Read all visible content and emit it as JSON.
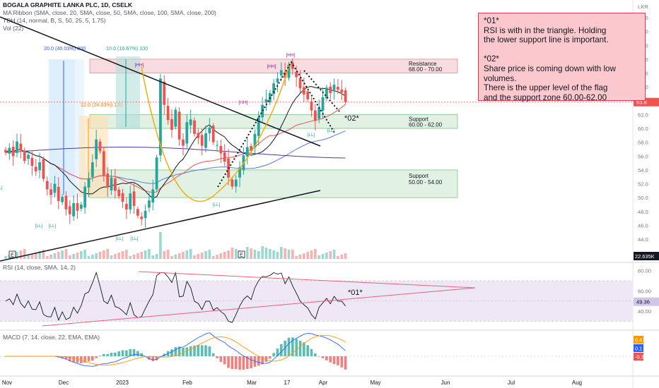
{
  "header": {
    "symbol_line": "BOGALA GRAPHITE LANKA PLC, 1D, CSELK",
    "ma_line": "MA Ribbon (SMA, close, 20, SMA, close, 50, SMA, close, 100, SMA, close, 200)",
    "tdh_line": "TDH (14, normal, B, S, 50, 25, 5, 1.75)",
    "vol_line": "Vol (22)"
  },
  "note": {
    "lines": [
      "*01*",
      "RSI is with in the triangle. Holding",
      "the lower support line is important.",
      "",
      "*02*",
      "Share price is coming down with low",
      "volumes.",
      "There is the upper level of the flag",
      "and the support zone 60.00-62.00"
    ]
  },
  "colors": {
    "up": "#26a69a",
    "down": "#ef5350",
    "resistance_fill": "#f8d7da",
    "support_fill": "#dcefe0",
    "ma20": "#131722",
    "ma50": "#ef5350",
    "ma100": "#5b7be0",
    "ma200": "#4a3aa8",
    "rsi_line": "#131722",
    "rsi_band": "#ede7f6",
    "macd_line": "#2962ff",
    "signal_line": "#ff9800"
  },
  "chart_data": [
    {
      "type": "candlestick",
      "pane": "price",
      "currency": "LKR",
      "y_ticks": [
        "76.0",
        "74.0",
        "72.0",
        "70.0",
        "68.0",
        "66.0",
        "64.0",
        "62.0",
        "60.0",
        "58.0",
        "56.0",
        "54.0",
        "52.0",
        "50.0",
        "48.0",
        "46.0",
        "44.0"
      ],
      "ylim": [
        43,
        77
      ],
      "last_price": "63.8",
      "last_volume": "22.635K",
      "x_ticks": [
        "Nov",
        "Dec",
        "2023",
        "Feb",
        "Mar",
        "17",
        "Apr",
        "May",
        "Jun",
        "Jul",
        "Aug"
      ],
      "closes": [
        56.5,
        57.2,
        56.0,
        58.1,
        56.8,
        55.3,
        56.2,
        54.6,
        53.8,
        55.1,
        52.7,
        51.2,
        50.4,
        52.0,
        49.5,
        50.1,
        48.3,
        47.6,
        49.2,
        48.1,
        49.0,
        51.6,
        52.8,
        55.1,
        58.4,
        56.7,
        53.2,
        51.5,
        52.9,
        51.0,
        50.2,
        49.4,
        48.3,
        50.6,
        48.8,
        47.4,
        46.9,
        48.1,
        49.6,
        51.2,
        55.8,
        67.2,
        63.4,
        61.2,
        59.8,
        62.7,
        58.4,
        57.5,
        60.9,
        61.3,
        59.2,
        58.6,
        57.5,
        59.3,
        60.1,
        58.0,
        57.6,
        56.4,
        55.2,
        52.9,
        51.6,
        52.6,
        54.4,
        56.1,
        57.3,
        56.8,
        59.2,
        61.6,
        63.4,
        64.2,
        65.1,
        66.5,
        67.2,
        68.4,
        67.3,
        69.2,
        68.6,
        67.4,
        65.8,
        64.9,
        64.2,
        62.6,
        61.1,
        63.0,
        64.5,
        65.9,
        65.1,
        66.3,
        65.6,
        65.2,
        63.8
      ],
      "annotations": [
        {
          "label": "[HH]",
          "at": "swing high Jan"
        },
        {
          "label": "[HH]",
          "at": "swing high Mar"
        },
        {
          "label": "[HH]",
          "at": "swing high Mar"
        },
        {
          "label": "[HH]",
          "at": "swing high 17 Mar"
        },
        {
          "label": "[LL]",
          "at": "swing low Nov"
        },
        {
          "label": "[LL]",
          "at": "swing low Dec"
        },
        {
          "label": "[LL]",
          "at": "swing low Jan"
        },
        {
          "label": "[LL]",
          "at": "swing low Jan"
        },
        {
          "label": "[LL]",
          "at": "swing low Feb"
        },
        {
          "label": "[LL]",
          "at": "swing low Apr"
        },
        {
          "label": "[LL]",
          "at": "swing low Apr"
        },
        {
          "label": "[L]",
          "at": "left edge"
        }
      ],
      "measures": [
        {
          "label": "20.0 (40.03%) 800"
        },
        {
          "label": "10.0 (16.67%) 100"
        },
        {
          "label": "12.0 (24.03%) 120"
        }
      ],
      "zones": [
        {
          "name": "Resistance",
          "range": "68.00 - 70.00",
          "low": 68,
          "high": 70
        },
        {
          "name": "Support",
          "range": "60.00 - 62.00",
          "low": 60,
          "high": 62
        },
        {
          "name": "Support",
          "range": "50.00 - 54.00",
          "low": 50,
          "high": 54
        }
      ],
      "callout": "*02*"
    },
    {
      "type": "line",
      "pane": "rsi",
      "label": "RSI (14, close, SMA, 14, 2)",
      "last_value": "49.36",
      "y_ticks": [
        "80.00",
        "60.00",
        "40.00"
      ],
      "band": [
        30,
        70
      ],
      "ylim": [
        22,
        86
      ],
      "callout": "*01*"
    },
    {
      "type": "histogram+line",
      "pane": "macd",
      "label": "MACD (7, 14, close, 22, EMA, EMA)",
      "values_shown": [
        "0.4",
        "0.1",
        "-0.3"
      ]
    }
  ]
}
